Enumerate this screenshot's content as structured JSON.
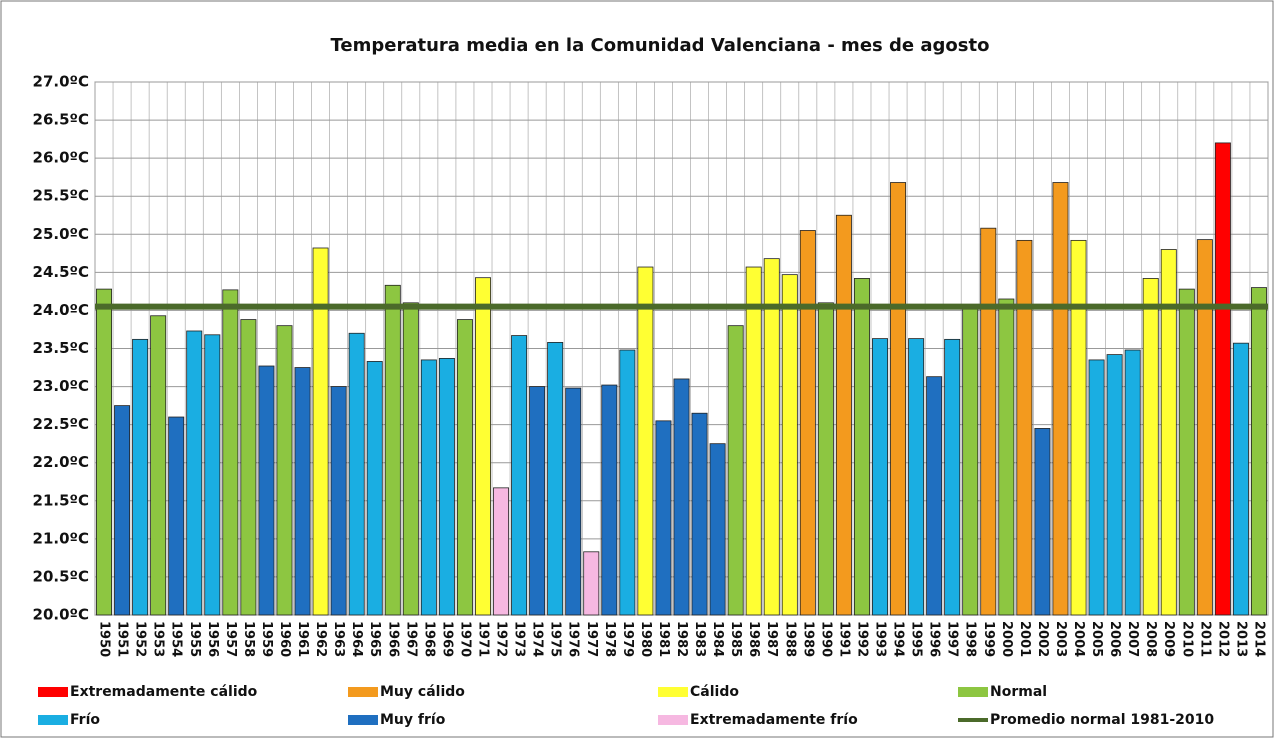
{
  "chart_data": {
    "type": "bar",
    "title": "Temperatura media en la Comunidad Valenciana - mes de agosto",
    "categories": [
      "1950",
      "1951",
      "1952",
      "1953",
      "1954",
      "1955",
      "1956",
      "1957",
      "1958",
      "1959",
      "1960",
      "1961",
      "1962",
      "1963",
      "1964",
      "1965",
      "1966",
      "1967",
      "1968",
      "1969",
      "1970",
      "1971",
      "1972",
      "1973",
      "1974",
      "1975",
      "1976",
      "1977",
      "1978",
      "1979",
      "1980",
      "1981",
      "1982",
      "1983",
      "1984",
      "1985",
      "1986",
      "1987",
      "1988",
      "1989",
      "1990",
      "1991",
      "1992",
      "1993",
      "1994",
      "1995",
      "1996",
      "1997",
      "1998",
      "1999",
      "2000",
      "2001",
      "2002",
      "2003",
      "2004",
      "2005",
      "2006",
      "2007",
      "2008",
      "2009",
      "2010",
      "2011",
      "2012",
      "2013",
      "2014"
    ],
    "values": [
      24.28,
      22.75,
      23.62,
      23.93,
      22.6,
      23.73,
      23.68,
      24.27,
      23.88,
      23.27,
      23.8,
      23.25,
      24.82,
      23.0,
      23.7,
      23.33,
      24.33,
      24.1,
      23.35,
      23.37,
      23.88,
      24.43,
      21.67,
      23.67,
      23.0,
      23.58,
      22.98,
      20.83,
      23.02,
      23.48,
      24.57,
      22.55,
      23.1,
      22.65,
      22.25,
      23.8,
      24.57,
      24.68,
      24.47,
      25.05,
      24.1,
      25.25,
      24.42,
      23.63,
      25.68,
      23.63,
      23.13,
      23.62,
      24.05,
      25.08,
      24.15,
      24.92,
      22.45,
      25.68,
      24.92,
      23.35,
      23.42,
      23.48,
      24.42,
      24.8,
      24.28,
      24.93,
      26.2,
      23.57,
      24.3
    ],
    "bar_colors": [
      "#8dc641",
      "#1f6fc0",
      "#1aaee2",
      "#8dc641",
      "#1f6fc0",
      "#1aaee2",
      "#1aaee2",
      "#8dc641",
      "#8dc641",
      "#1f6fc0",
      "#8dc641",
      "#1f6fc0",
      "#ffff33",
      "#1f6fc0",
      "#1aaee2",
      "#1aaee2",
      "#8dc641",
      "#8dc641",
      "#1aaee2",
      "#1aaee2",
      "#8dc641",
      "#ffff33",
      "#f6b8e1",
      "#1aaee2",
      "#1f6fc0",
      "#1aaee2",
      "#1f6fc0",
      "#f6b8e1",
      "#1f6fc0",
      "#1aaee2",
      "#ffff33",
      "#1f6fc0",
      "#1f6fc0",
      "#1f6fc0",
      "#1f6fc0",
      "#8dc641",
      "#ffff33",
      "#ffff33",
      "#ffff33",
      "#f39a1e",
      "#8dc641",
      "#f39a1e",
      "#8dc641",
      "#1aaee2",
      "#f39a1e",
      "#1aaee2",
      "#1f6fc0",
      "#1aaee2",
      "#8dc641",
      "#f39a1e",
      "#8dc641",
      "#f39a1e",
      "#1f6fc0",
      "#f39a1e",
      "#ffff33",
      "#1aaee2",
      "#1aaee2",
      "#1aaee2",
      "#ffff33",
      "#ffff33",
      "#8dc641",
      "#f39a1e",
      "#ff0000",
      "#1aaee2",
      "#8dc641"
    ],
    "legend": [
      {
        "name": "Extremadamente cálido",
        "color": "#ff0000"
      },
      {
        "name": "Muy cálido",
        "color": "#f39a1e"
      },
      {
        "name": "Cálido",
        "color": "#ffff33"
      },
      {
        "name": "Normal",
        "color": "#8dc641"
      },
      {
        "name": "Frío",
        "color": "#1aaee2"
      },
      {
        "name": "Muy frío",
        "color": "#1f6fc0"
      },
      {
        "name": "Extremadamente frío",
        "color": "#f6b8e1"
      }
    ],
    "reference_line": {
      "name": "Promedio normal 1981-2010",
      "value": 24.05,
      "color": "#4b6a2a"
    },
    "ylim": [
      20,
      27
    ],
    "yticks": [
      {
        "value": 20,
        "label": "20.0ºC"
      },
      {
        "value": 20.5,
        "label": "20.5ºC"
      },
      {
        "value": 21,
        "label": "21.0ºC"
      },
      {
        "value": 21.5,
        "label": "21.5ºC"
      },
      {
        "value": 22,
        "label": "22.0ºC"
      },
      {
        "value": 22.5,
        "label": "22.5ºC"
      },
      {
        "value": 23,
        "label": "23.0ºC"
      },
      {
        "value": 23.5,
        "label": "23.5ºC"
      },
      {
        "value": 24,
        "label": "24.0ºC"
      },
      {
        "value": 24.5,
        "label": "24.5ºC"
      },
      {
        "value": 25,
        "label": "25.0ºC"
      },
      {
        "value": 25.5,
        "label": "25.5ºC"
      },
      {
        "value": 26,
        "label": "26.0ºC"
      },
      {
        "value": 26.5,
        "label": "26.5ºC"
      },
      {
        "value": 27,
        "label": "27.0ºC"
      }
    ],
    "grid": true
  }
}
